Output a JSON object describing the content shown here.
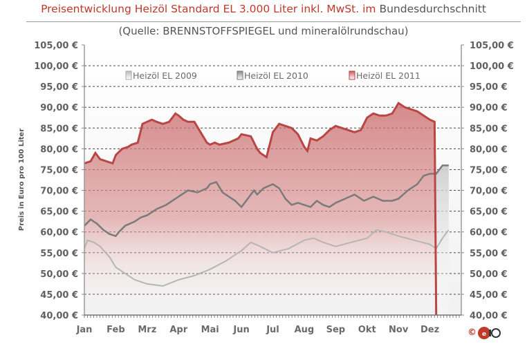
{
  "title": {
    "part1": "Preisentwicklung Heizöl Standard EL 3.000 Liter inkl. MwSt. im",
    "part2": " Bundesdurchschnitt"
  },
  "subtitle": "(Quelle: BRENNSTOFFSPIEGEL  und mineralölrundschau)",
  "copyright": "©",
  "logo_icon": "oelo-logo-icon",
  "colors": {
    "red": "#b94545",
    "red_fill": "#d98f8f",
    "grey": "#9a9a9a",
    "dark_grey": "#6a6a6a"
  },
  "chart_data": {
    "type": "area",
    "ylabel": "Preis in Euro pro 100 Liter",
    "ylim": [
      40,
      105
    ],
    "y_ticks": [
      "40,00 €",
      "45,00 €",
      "50,00 €",
      "55,00 €",
      "60,00 €",
      "65,00 €",
      "70,00 €",
      "75,00 €",
      "80,00 €",
      "85,00 €",
      "90,00 €",
      "95,00 €",
      "100,00 €",
      "105,00 €"
    ],
    "grid": true,
    "legend_position": "top",
    "categories": [
      "Jan",
      "Feb",
      "Mrz",
      "Apr",
      "Mai",
      "Jun",
      "Jul",
      "Aug",
      "Sep",
      "Okt",
      "Nov",
      "Dez"
    ],
    "series": [
      {
        "name": "Heizöl EL 2009",
        "color": "#b0b0b0",
        "x": [
          0,
          0.1,
          0.3,
          0.5,
          0.8,
          1.0,
          1.3,
          1.6,
          2.0,
          2.5,
          3.0,
          3.5,
          4.0,
          4.5,
          5.0,
          5.3,
          5.6,
          6.0,
          6.5,
          7.0,
          7.3,
          7.6,
          8.0,
          8.5,
          9.0,
          9.3,
          9.6,
          10.0,
          10.5,
          11.0,
          11.2,
          11.4,
          11.6
        ],
        "values": [
          56,
          58,
          57.5,
          56.5,
          54,
          51.5,
          50,
          48.5,
          47.5,
          47,
          48.5,
          49.5,
          51,
          53,
          55.5,
          57.5,
          56.5,
          55,
          56,
          58,
          58.5,
          57.5,
          56.5,
          57.5,
          58.5,
          60.5,
          60,
          59,
          58,
          57,
          56,
          58.5,
          60.5
        ]
      },
      {
        "name": "Heizöl EL 2010",
        "color": "#808080",
        "x": [
          0,
          0.2,
          0.4,
          0.6,
          0.8,
          1.0,
          1.1,
          1.3,
          1.6,
          1.8,
          2.0,
          2.3,
          2.6,
          3.0,
          3.3,
          3.6,
          3.9,
          4.0,
          4.2,
          4.4,
          4.6,
          4.8,
          5.0,
          5.2,
          5.4,
          5.5,
          5.7,
          6.0,
          6.2,
          6.4,
          6.6,
          6.8,
          7.0,
          7.2,
          7.4,
          7.6,
          7.8,
          8.0,
          8.3,
          8.6,
          8.9,
          9.2,
          9.5,
          9.8,
          10.0,
          10.3,
          10.6,
          10.8,
          11.0,
          11.2,
          11.4,
          11.6
        ],
        "values": [
          61.5,
          63,
          62,
          60.5,
          59.5,
          59,
          60,
          61.5,
          62.5,
          63.5,
          64,
          65.5,
          66.5,
          68.5,
          70,
          69.5,
          70.5,
          71.5,
          72,
          69.5,
          68.5,
          67.5,
          66,
          68,
          70,
          69,
          70.5,
          71.5,
          70.5,
          68,
          66.5,
          67,
          66.5,
          66,
          67.5,
          66.5,
          66,
          67,
          68,
          69,
          67.5,
          68.5,
          67.5,
          67.5,
          68,
          70,
          71.5,
          73.5,
          74,
          74,
          76,
          76
        ]
      },
      {
        "name": "Heizöl EL 2011",
        "color": "#b94545",
        "x": [
          0,
          0.2,
          0.35,
          0.5,
          0.7,
          0.9,
          1.0,
          1.2,
          1.4,
          1.5,
          1.7,
          1.85,
          2.0,
          2.15,
          2.3,
          2.5,
          2.7,
          2.9,
          3.0,
          3.15,
          3.3,
          3.5,
          3.7,
          3.9,
          4.0,
          4.15,
          4.3,
          4.6,
          4.9,
          5.0,
          5.3,
          5.5,
          5.6,
          5.8,
          6.0,
          6.2,
          6.4,
          6.6,
          6.8,
          7.0,
          7.1,
          7.2,
          7.4,
          7.6,
          7.8,
          8.0,
          8.2,
          8.4,
          8.6,
          8.8,
          9.0,
          9.2,
          9.4,
          9.6,
          9.8,
          10.0,
          10.2,
          10.4,
          10.6,
          10.8,
          11.0,
          11.15,
          11.2
        ],
        "values": [
          76.5,
          77,
          79,
          77.5,
          77,
          76.5,
          78.5,
          80,
          80.5,
          81,
          81.5,
          86,
          86.5,
          87,
          86.5,
          86,
          86.5,
          88.5,
          88,
          87,
          86.5,
          86.5,
          84,
          81.5,
          81,
          81.5,
          81,
          81.5,
          82.5,
          83.5,
          83,
          80,
          79,
          78,
          84,
          86,
          85.5,
          85,
          83.5,
          80.5,
          79.5,
          82.5,
          82,
          83,
          84.5,
          85.5,
          85,
          84.5,
          84,
          84.5,
          87.5,
          88.5,
          88,
          88,
          88.5,
          91,
          90,
          89.5,
          89,
          88,
          87,
          86.5,
          40
        ]
      }
    ]
  }
}
